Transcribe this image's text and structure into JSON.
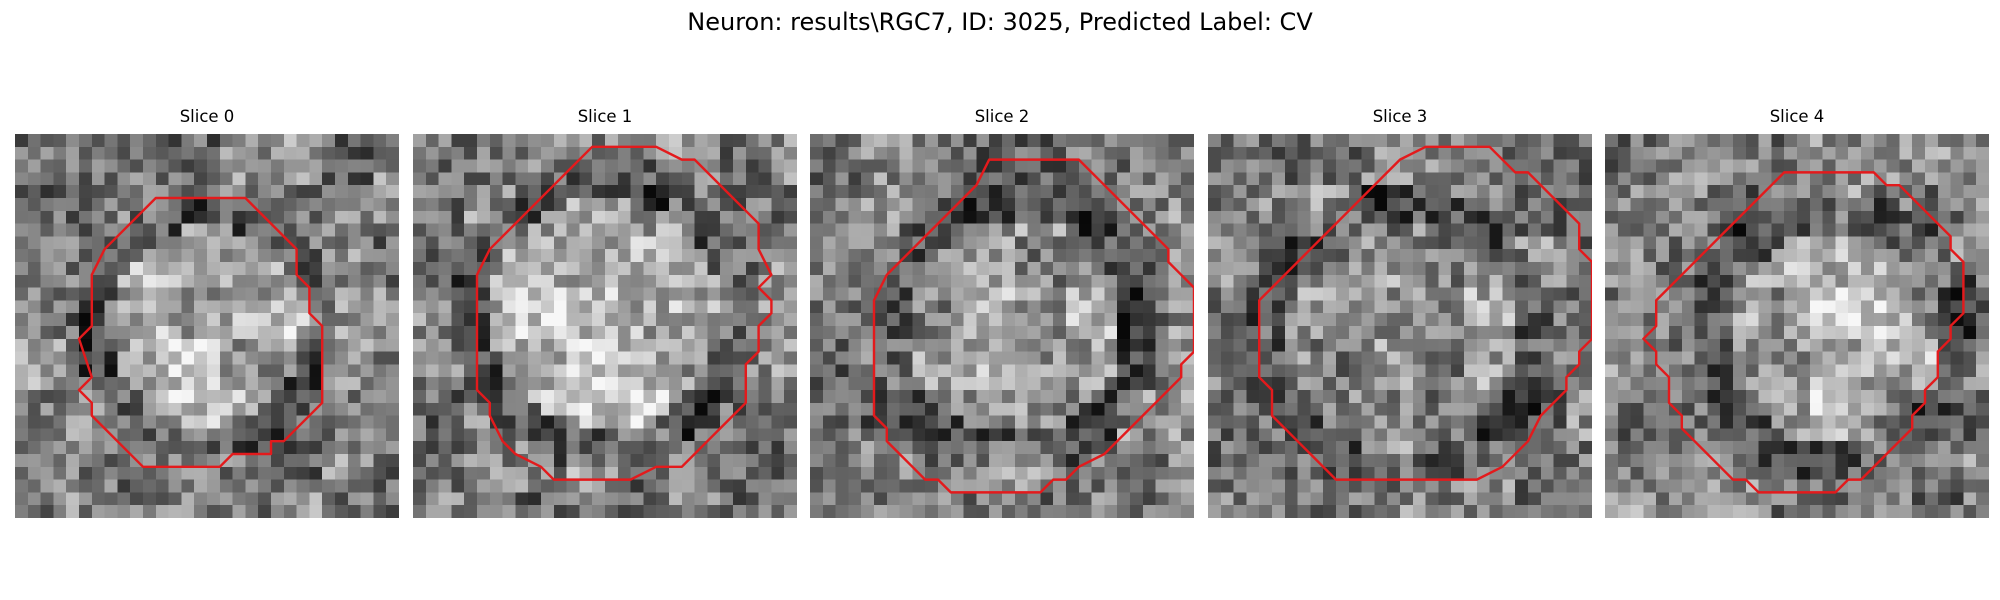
{
  "figure": {
    "title": "Neuron: results\\RGC7, ID: 3025, Predicted Label: CV"
  },
  "contour_color": "#e31a1c",
  "grid_size": 30,
  "slices": [
    {
      "label": "Slice 0",
      "seed": 11,
      "blob": {
        "cx": 15.0,
        "cy": 15.0,
        "r": 9.0,
        "bright": 0.22
      },
      "contour": [
        [
          11,
          5
        ],
        [
          18,
          5
        ],
        [
          22,
          9
        ],
        [
          22,
          11
        ],
        [
          23,
          12
        ],
        [
          23,
          14
        ],
        [
          24,
          15
        ],
        [
          24,
          21
        ],
        [
          21,
          24
        ],
        [
          20,
          24
        ],
        [
          20,
          25
        ],
        [
          17,
          25
        ],
        [
          16,
          26
        ],
        [
          10,
          26
        ],
        [
          7,
          23
        ],
        [
          6,
          22
        ],
        [
          6,
          21
        ],
        [
          5,
          20
        ],
        [
          6,
          19
        ],
        [
          5,
          16
        ],
        [
          6,
          15
        ],
        [
          6,
          11
        ],
        [
          7,
          9
        ]
      ]
    },
    {
      "label": "Slice 1",
      "seed": 23,
      "blob": {
        "cx": 15.0,
        "cy": 14.0,
        "r": 10.5,
        "bright": 0.3
      },
      "contour": [
        [
          14,
          1
        ],
        [
          19,
          1
        ],
        [
          21,
          2
        ],
        [
          22,
          2
        ],
        [
          25,
          5
        ],
        [
          26,
          6
        ],
        [
          27,
          7
        ],
        [
          27,
          8
        ],
        [
          27,
          9
        ],
        [
          28,
          11
        ],
        [
          27,
          12
        ],
        [
          28,
          13
        ],
        [
          28,
          14
        ],
        [
          27,
          15
        ],
        [
          27,
          16
        ],
        [
          27,
          17
        ],
        [
          26,
          18
        ],
        [
          26,
          19
        ],
        [
          26,
          20
        ],
        [
          26,
          21
        ],
        [
          25,
          22
        ],
        [
          24,
          23
        ],
        [
          23,
          24
        ],
        [
          22,
          25
        ],
        [
          21,
          26
        ],
        [
          19,
          26
        ],
        [
          17,
          27
        ],
        [
          11,
          27
        ],
        [
          10,
          26
        ],
        [
          8,
          25
        ],
        [
          7,
          24
        ],
        [
          6,
          22
        ],
        [
          6,
          21
        ],
        [
          5,
          20
        ],
        [
          5,
          19
        ],
        [
          5,
          15
        ],
        [
          5,
          11
        ],
        [
          6,
          9
        ],
        [
          7,
          8
        ],
        [
          8,
          7
        ],
        [
          9,
          6
        ],
        [
          10,
          5
        ],
        [
          11,
          4
        ],
        [
          12,
          3
        ]
      ]
    },
    {
      "label": "Slice 2",
      "seed": 37,
      "blob": {
        "cx": 16.0,
        "cy": 15.0,
        "r": 10.0,
        "bright": 0.12
      },
      "contour": [
        [
          14,
          2
        ],
        [
          21,
          2
        ],
        [
          23,
          4
        ],
        [
          24,
          5
        ],
        [
          25,
          6
        ],
        [
          26,
          7
        ],
        [
          27,
          8
        ],
        [
          28,
          9
        ],
        [
          28,
          10
        ],
        [
          29,
          11
        ],
        [
          30,
          12
        ],
        [
          30,
          17
        ],
        [
          29,
          18
        ],
        [
          29,
          19
        ],
        [
          28,
          20
        ],
        [
          27,
          21
        ],
        [
          26,
          22
        ],
        [
          25,
          23
        ],
        [
          24,
          24
        ],
        [
          23,
          25
        ],
        [
          21,
          26
        ],
        [
          20,
          27
        ],
        [
          19,
          27
        ],
        [
          18,
          28
        ],
        [
          11,
          28
        ],
        [
          10,
          27
        ],
        [
          9,
          27
        ],
        [
          8,
          26
        ],
        [
          7,
          25
        ],
        [
          6,
          24
        ],
        [
          6,
          23
        ],
        [
          5,
          22
        ],
        [
          5,
          21
        ],
        [
          5,
          20
        ],
        [
          5,
          13
        ],
        [
          6,
          11
        ],
        [
          8,
          9
        ],
        [
          9,
          8
        ],
        [
          10,
          7
        ],
        [
          11,
          6
        ],
        [
          12,
          5
        ],
        [
          13,
          4
        ]
      ]
    },
    {
      "label": "Slice 3",
      "seed": 53,
      "blob": {
        "cx": 15.0,
        "cy": 16.0,
        "r": 10.5,
        "bright": 0.1
      },
      "contour": [
        [
          18,
          1
        ],
        [
          22,
          1
        ],
        [
          24,
          3
        ],
        [
          25,
          3
        ],
        [
          26,
          4
        ],
        [
          27,
          5
        ],
        [
          28,
          6
        ],
        [
          29,
          7
        ],
        [
          29,
          8
        ],
        [
          29,
          9
        ],
        [
          30,
          10
        ],
        [
          30,
          16
        ],
        [
          29,
          17
        ],
        [
          29,
          18
        ],
        [
          28,
          19
        ],
        [
          28,
          20
        ],
        [
          27,
          21
        ],
        [
          26,
          22
        ],
        [
          25,
          24
        ],
        [
          23,
          26
        ],
        [
          21,
          27
        ],
        [
          10,
          27
        ],
        [
          8,
          25
        ],
        [
          7,
          24
        ],
        [
          6,
          23
        ],
        [
          5,
          22
        ],
        [
          5,
          20
        ],
        [
          4,
          19
        ],
        [
          4,
          13
        ],
        [
          5,
          12
        ],
        [
          7,
          10
        ],
        [
          8,
          9
        ],
        [
          9,
          8
        ],
        [
          10,
          7
        ],
        [
          11,
          6
        ],
        [
          12,
          5
        ],
        [
          13,
          4
        ],
        [
          14,
          3
        ],
        [
          15,
          2
        ],
        [
          17,
          1
        ]
      ]
    },
    {
      "label": "Slice 4",
      "seed": 71,
      "blob": {
        "cx": 18.0,
        "cy": 16.0,
        "r": 10.0,
        "bright": 0.2
      },
      "contour": [
        [
          14,
          3
        ],
        [
          21,
          3
        ],
        [
          22,
          4
        ],
        [
          23,
          4
        ],
        [
          24,
          5
        ],
        [
          25,
          6
        ],
        [
          26,
          7
        ],
        [
          27,
          8
        ],
        [
          27,
          9
        ],
        [
          28,
          10
        ],
        [
          28,
          14
        ],
        [
          27,
          15
        ],
        [
          27,
          16
        ],
        [
          26,
          17
        ],
        [
          26,
          19
        ],
        [
          25,
          20
        ],
        [
          25,
          21
        ],
        [
          24,
          22
        ],
        [
          24,
          23
        ],
        [
          23,
          24
        ],
        [
          22,
          25
        ],
        [
          21,
          26
        ],
        [
          20,
          27
        ],
        [
          19,
          27
        ],
        [
          18,
          28
        ],
        [
          12,
          28
        ],
        [
          11,
          27
        ],
        [
          10,
          27
        ],
        [
          9,
          26
        ],
        [
          8,
          25
        ],
        [
          7,
          24
        ],
        [
          6,
          23
        ],
        [
          6,
          22
        ],
        [
          5,
          21
        ],
        [
          5,
          19
        ],
        [
          4,
          18
        ],
        [
          4,
          17
        ],
        [
          3,
          16
        ],
        [
          4,
          15
        ],
        [
          4,
          13
        ],
        [
          5,
          12
        ],
        [
          6,
          11
        ],
        [
          7,
          10
        ],
        [
          8,
          9
        ],
        [
          9,
          8
        ],
        [
          10,
          7
        ],
        [
          11,
          6
        ],
        [
          12,
          5
        ],
        [
          13,
          4
        ]
      ]
    }
  ]
}
